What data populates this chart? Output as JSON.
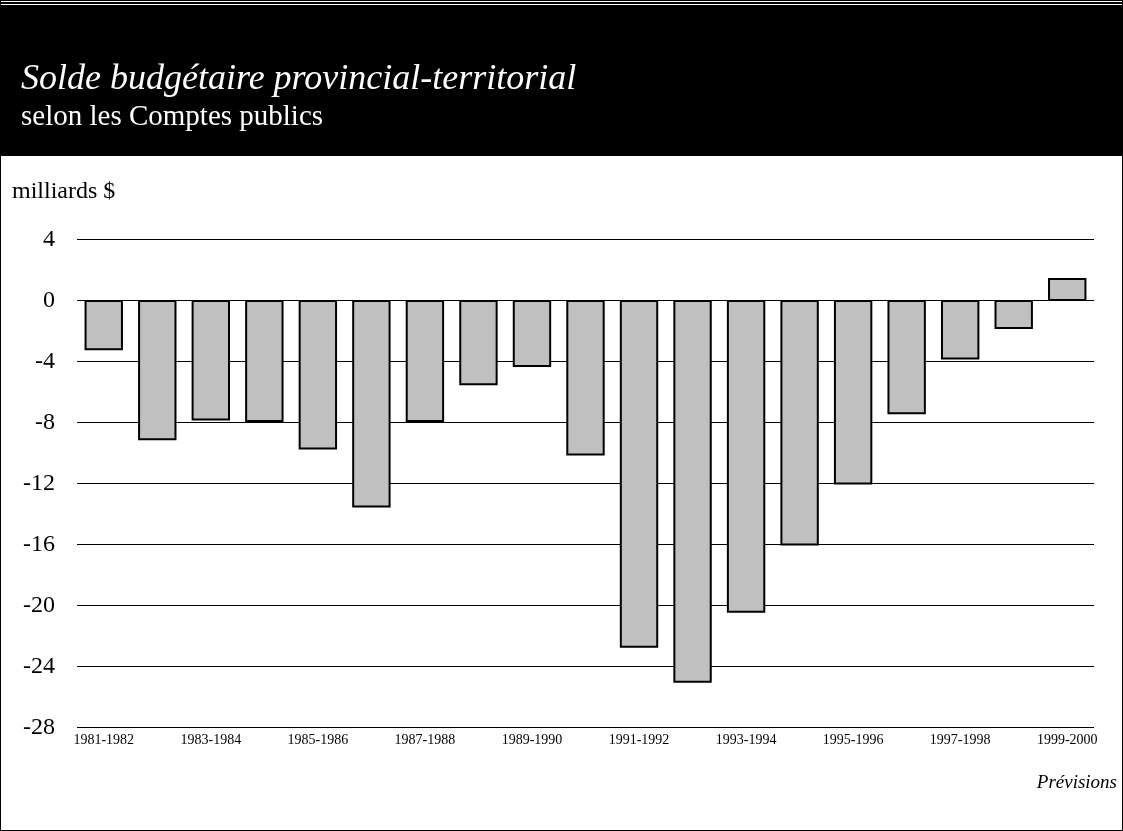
{
  "chart_data": {
    "type": "bar",
    "title": "Solde budgétaire provincial-territorial",
    "subtitle": "selon les Comptes publics",
    "ylabel": "milliards $",
    "categories": [
      "1981-1982",
      null,
      "1983-1984",
      null,
      "1985-1986",
      null,
      "1987-1988",
      null,
      "1989-1990",
      null,
      "1991-1992",
      null,
      "1993-1994",
      null,
      "1995-1996",
      null,
      "1997-1998",
      null,
      "1999-2000"
    ],
    "values": [
      -3.2,
      -9.1,
      -7.8,
      -7.9,
      -9.7,
      -13.5,
      -7.9,
      -5.5,
      -4.3,
      -10.1,
      -22.7,
      -25.0,
      -20.4,
      -16.0,
      -12.0,
      -7.4,
      -3.8,
      -1.8,
      1.4
    ],
    "color": "#c0c0c0",
    "ylim": [
      -28,
      4
    ],
    "yticks": [
      -28,
      -24,
      -20,
      -16,
      -12,
      -8,
      -4,
      0,
      4
    ],
    "grid": "y",
    "annotations": [
      "Prévisions"
    ]
  }
}
